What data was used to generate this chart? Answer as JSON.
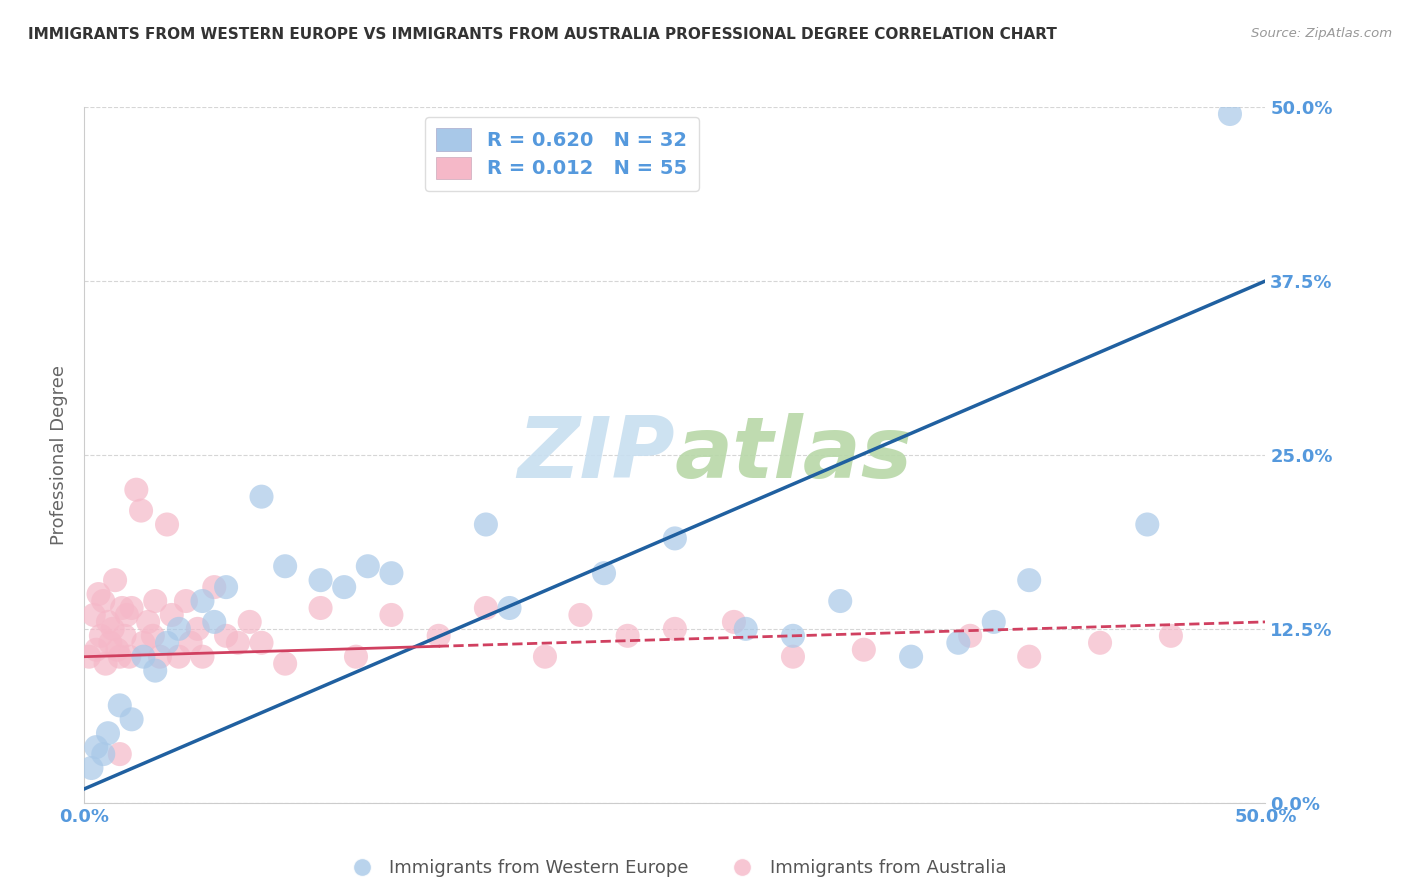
{
  "title": "IMMIGRANTS FROM WESTERN EUROPE VS IMMIGRANTS FROM AUSTRALIA PROFESSIONAL DEGREE CORRELATION CHART",
  "source": "Source: ZipAtlas.com",
  "ylabel": "Professional Degree",
  "ytick_labels": [
    "0.0%",
    "12.5%",
    "25.0%",
    "37.5%",
    "50.0%"
  ],
  "ytick_values": [
    0.0,
    12.5,
    25.0,
    37.5,
    50.0
  ],
  "xlim": [
    0.0,
    50.0
  ],
  "ylim": [
    0.0,
    50.0
  ],
  "legend_label1": "Immigrants from Western Europe",
  "legend_label2": "Immigrants from Australia",
  "legend_r1": "R = 0.620",
  "legend_n1": "N = 32",
  "legend_r2": "R = 0.012",
  "legend_n2": "N = 55",
  "blue_scatter_x": [
    0.3,
    0.5,
    0.8,
    1.0,
    1.5,
    2.0,
    2.5,
    3.0,
    3.5,
    4.0,
    5.0,
    5.5,
    6.0,
    7.5,
    8.5,
    10.0,
    11.0,
    12.0,
    13.0,
    17.0,
    18.0,
    22.0,
    25.0,
    28.0,
    30.0,
    32.0,
    35.0,
    37.0,
    38.5,
    40.0,
    45.0,
    48.5
  ],
  "blue_scatter_y": [
    2.5,
    4.0,
    3.5,
    5.0,
    7.0,
    6.0,
    10.5,
    9.5,
    11.5,
    12.5,
    14.5,
    13.0,
    15.5,
    22.0,
    17.0,
    16.0,
    15.5,
    17.0,
    16.5,
    20.0,
    14.0,
    16.5,
    19.0,
    12.5,
    12.0,
    14.5,
    10.5,
    11.5,
    13.0,
    16.0,
    20.0,
    49.5
  ],
  "pink_scatter_x": [
    0.2,
    0.4,
    0.5,
    0.6,
    0.7,
    0.8,
    0.9,
    1.0,
    1.1,
    1.2,
    1.3,
    1.4,
    1.5,
    1.6,
    1.7,
    1.8,
    1.9,
    2.0,
    2.2,
    2.4,
    2.5,
    2.7,
    2.9,
    3.0,
    3.2,
    3.5,
    3.7,
    4.0,
    4.3,
    4.5,
    4.8,
    5.0,
    5.5,
    6.0,
    6.5,
    7.0,
    7.5,
    8.5,
    10.0,
    11.5,
    13.0,
    15.0,
    17.0,
    19.5,
    21.0,
    23.0,
    25.0,
    27.5,
    30.0,
    33.0,
    37.5,
    40.0,
    43.0,
    46.0,
    1.5
  ],
  "pink_scatter_y": [
    10.5,
    13.5,
    11.0,
    15.0,
    12.0,
    14.5,
    10.0,
    13.0,
    11.5,
    12.5,
    16.0,
    11.0,
    10.5,
    14.0,
    12.0,
    13.5,
    10.5,
    14.0,
    22.5,
    21.0,
    11.5,
    13.0,
    12.0,
    14.5,
    10.5,
    20.0,
    13.5,
    10.5,
    14.5,
    11.5,
    12.5,
    10.5,
    15.5,
    12.0,
    11.5,
    13.0,
    11.5,
    10.0,
    14.0,
    10.5,
    13.5,
    12.0,
    14.0,
    10.5,
    13.5,
    12.0,
    12.5,
    13.0,
    10.5,
    11.0,
    12.0,
    10.5,
    11.5,
    12.0,
    3.5
  ],
  "blue_line_x": [
    0.0,
    50.0
  ],
  "blue_line_y": [
    1.0,
    37.5
  ],
  "pink_line_x": [
    0.0,
    50.0
  ],
  "pink_line_y": [
    10.5,
    13.0
  ],
  "watermark_zip": "ZIP",
  "watermark_atlas": "atlas",
  "background_color": "#ffffff",
  "blue_scatter_color": "#a8c8e8",
  "pink_scatter_color": "#f5b8c8",
  "blue_line_color": "#2060a0",
  "pink_line_color": "#d04060",
  "grid_color": "#cccccc",
  "title_color": "#333333",
  "axis_label_color": "#666666",
  "tick_label_color": "#5599dd",
  "watermark_color": "#c8dff0"
}
